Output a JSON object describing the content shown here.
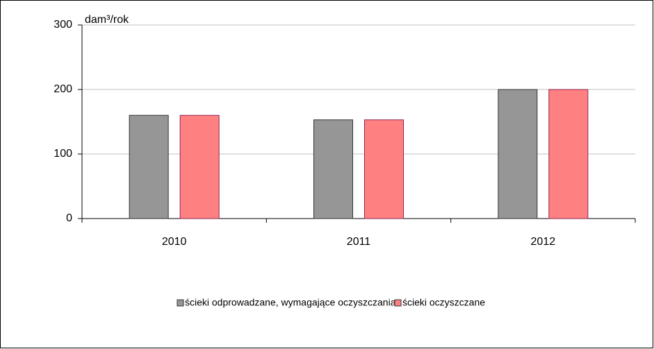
{
  "chart_data": {
    "type": "bar",
    "y_label": "dam³/rok",
    "categories": [
      "2010",
      "2011",
      "2012"
    ],
    "series": [
      {
        "name": "ścieki odprowadzane, wymagające oczyszczania",
        "color": "#969696",
        "values": [
          160,
          153,
          200
        ]
      },
      {
        "name": "ścieki oczyszczane",
        "color": "#ff8080",
        "values": [
          160,
          153,
          200
        ]
      }
    ],
    "ylim": [
      0,
      300
    ],
    "yticks": [
      0,
      100,
      200,
      300
    ],
    "grid": true
  }
}
